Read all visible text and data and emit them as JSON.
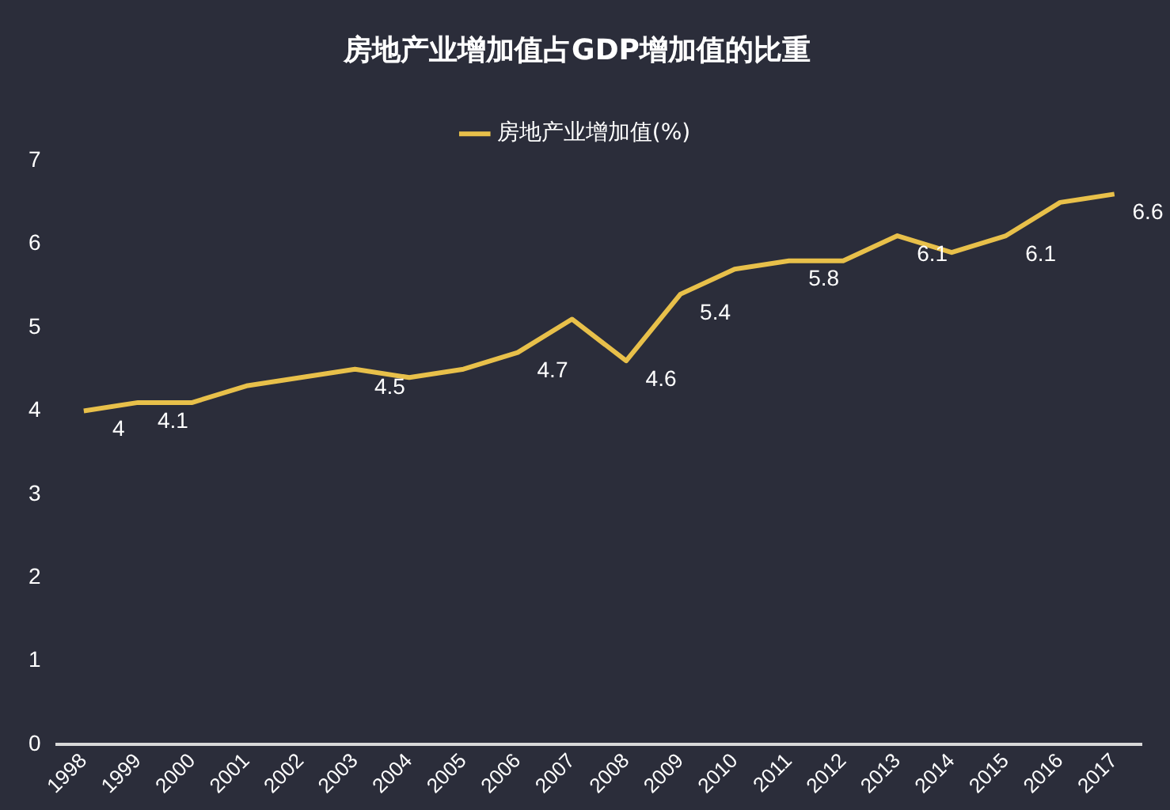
{
  "chart_data": {
    "type": "line",
    "title": "房地产业增加值占GDP增加值的比重",
    "categories": [
      "1998",
      "1999",
      "2000",
      "2001",
      "2002",
      "2003",
      "2004",
      "2005",
      "2006",
      "2007",
      "2008",
      "2009",
      "2010",
      "2011",
      "2012",
      "2013",
      "2014",
      "2015",
      "2016",
      "2017"
    ],
    "series": [
      {
        "name": "房地产业增加值(%)",
        "color": "#e8c04a",
        "values": [
          4,
          4.1,
          4.1,
          4.3,
          4.4,
          4.5,
          4.4,
          4.5,
          4.7,
          5.1,
          4.6,
          5.4,
          5.7,
          5.8,
          5.8,
          6.1,
          5.9,
          6.1,
          6.5,
          6.6
        ],
        "value_labels": [
          "4",
          "4.1",
          null,
          null,
          null,
          "4.5",
          null,
          null,
          "4.7",
          null,
          "4.6",
          "5.4",
          null,
          "5.8",
          null,
          "6.1",
          null,
          "6.1",
          null,
          "6.6"
        ]
      }
    ],
    "ylim": [
      0,
      7
    ],
    "yticks": [
      0,
      1,
      2,
      3,
      4,
      5,
      6,
      7
    ],
    "grid": false,
    "legend": "top",
    "marker": "none",
    "line_style": "solid"
  }
}
